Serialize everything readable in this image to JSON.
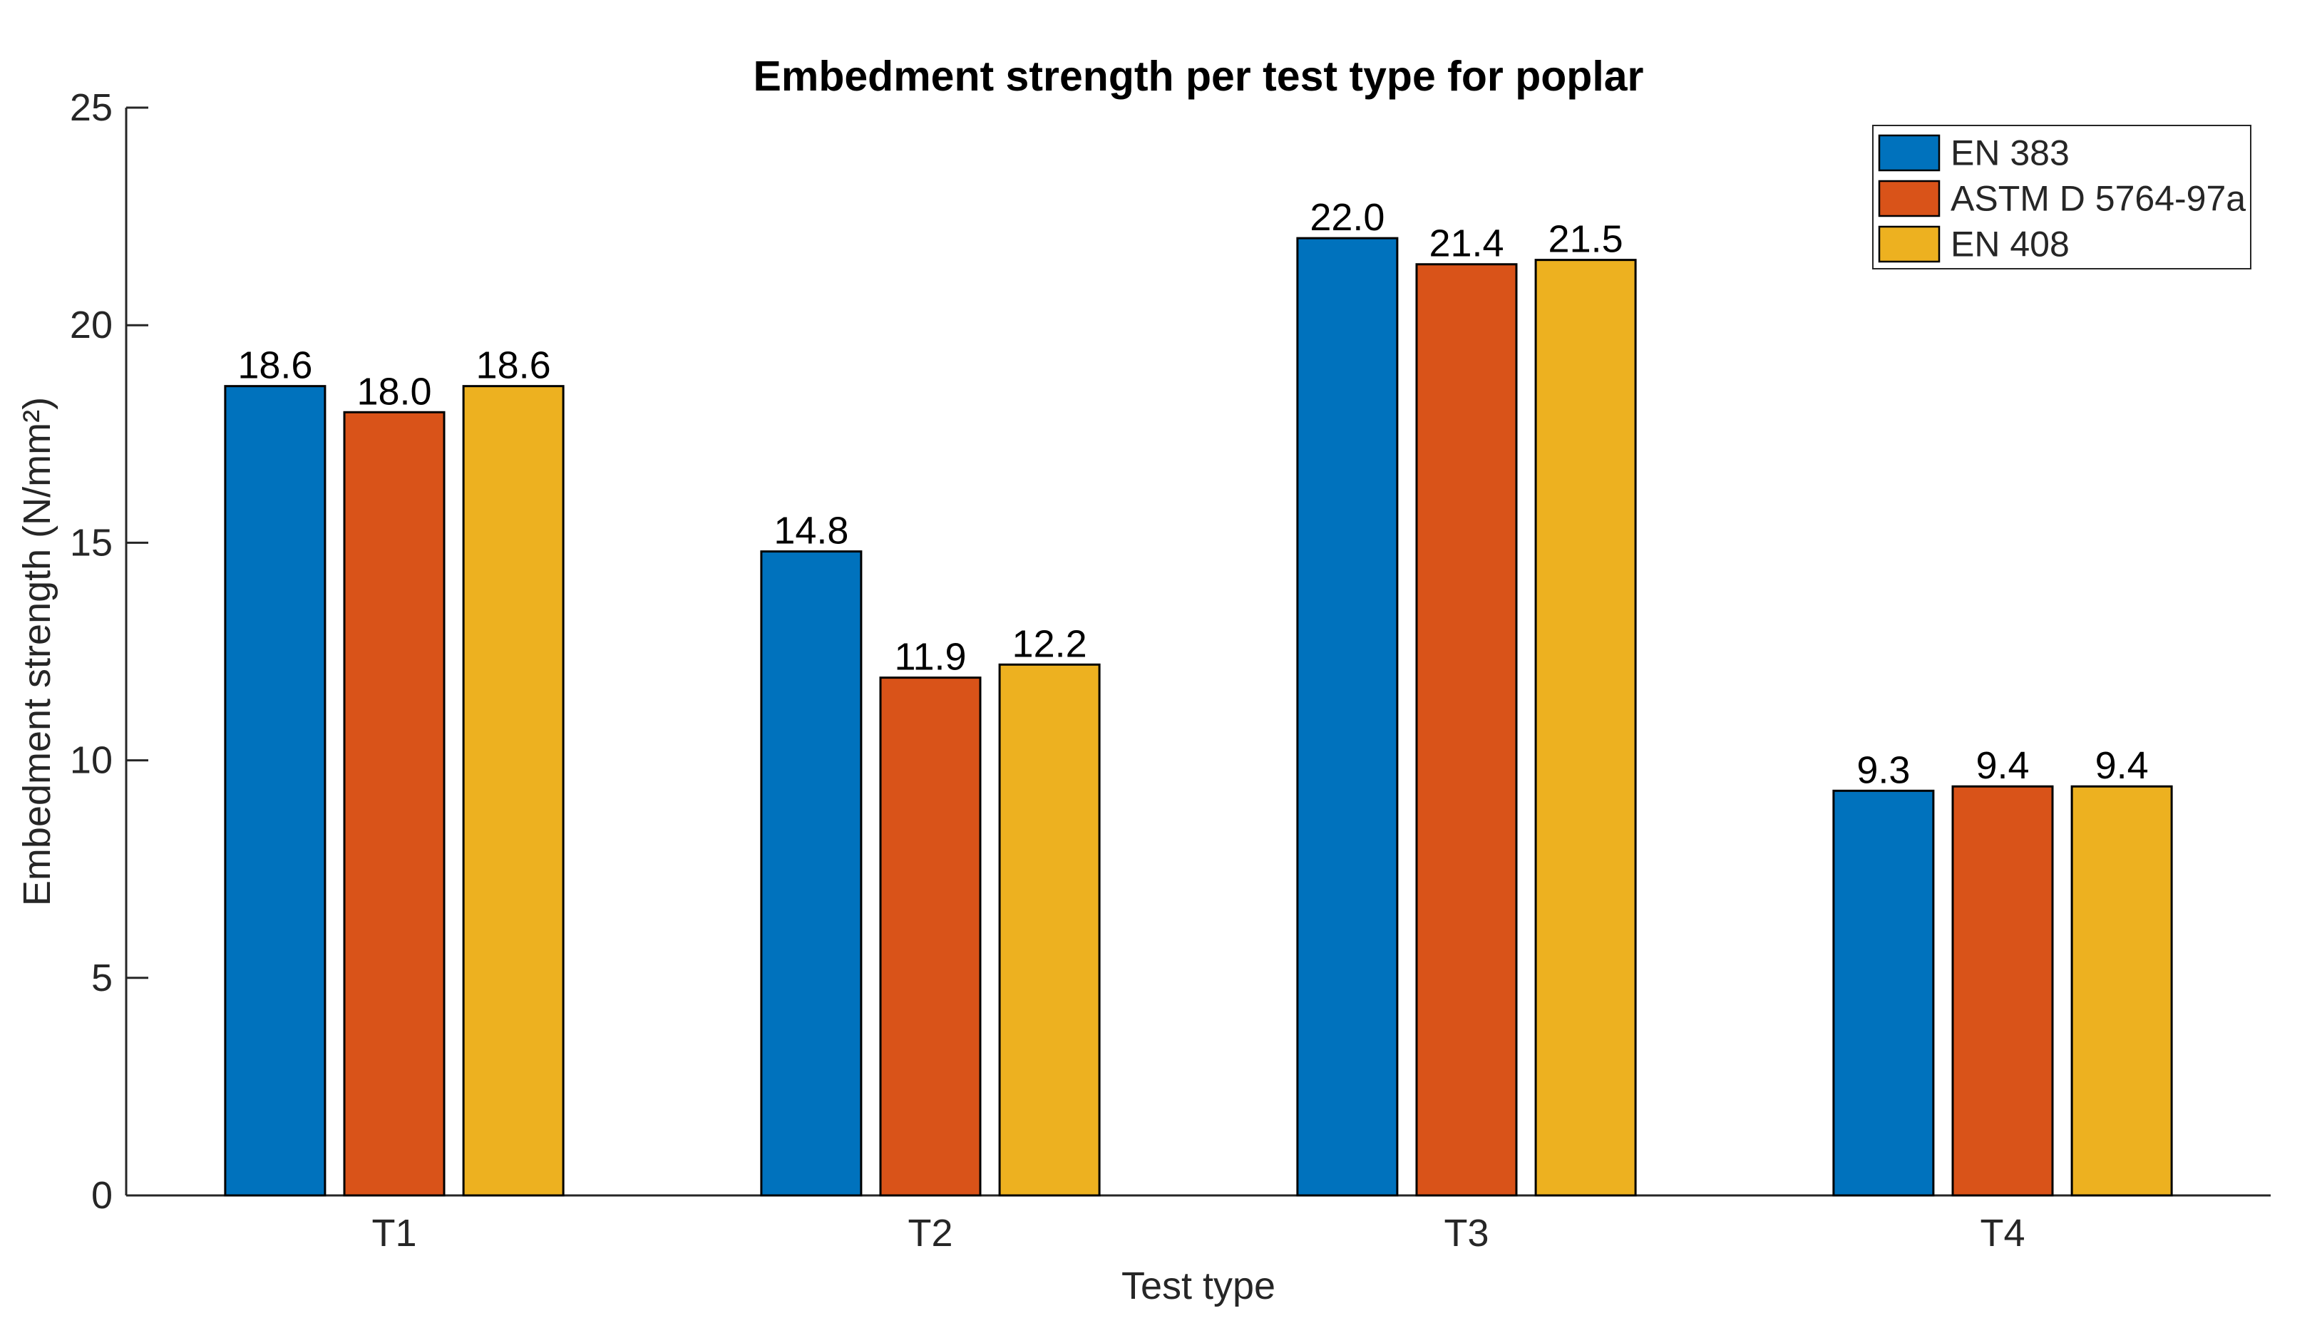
{
  "figure": {
    "background_color": "#ffffff"
  },
  "chart_data": {
    "type": "bar",
    "title": "Embedment strength per test type for poplar",
    "xlabel": "Test type",
    "ylabel": "Embedment strength (N/mm²)",
    "categories": [
      "T1",
      "T2",
      "T3",
      "T4"
    ],
    "series": [
      {
        "name": "EN 383",
        "color": "#0072BD",
        "values": [
          18.6,
          14.8,
          22.0,
          9.3
        ]
      },
      {
        "name": "ASTM D 5764-97a",
        "color": "#D95319",
        "values": [
          18.0,
          11.9,
          21.4,
          9.4
        ]
      },
      {
        "name": "EN 408",
        "color": "#EDB120",
        "values": [
          18.6,
          12.2,
          21.5,
          9.4
        ]
      }
    ],
    "value_labels": [
      [
        "18.6",
        "14.8",
        "22.0",
        "9.3"
      ],
      [
        "18.0",
        "11.9",
        "21.4",
        "9.4"
      ],
      [
        "18.6",
        "12.2",
        "21.5",
        "9.4"
      ]
    ],
    "ylim": [
      0,
      25
    ],
    "yticks": [
      "0",
      "5",
      "10",
      "15",
      "20",
      "25"
    ],
    "grid": false,
    "bar_edge_color": "#000000",
    "axis_color": "#262626",
    "value_label_color": "#000000",
    "legend": {
      "position": "top-right",
      "border_color": "#262626",
      "background_color": "#ffffff",
      "entries": [
        "EN 383",
        "ASTM D 5764-97a",
        "EN 408"
      ]
    }
  }
}
